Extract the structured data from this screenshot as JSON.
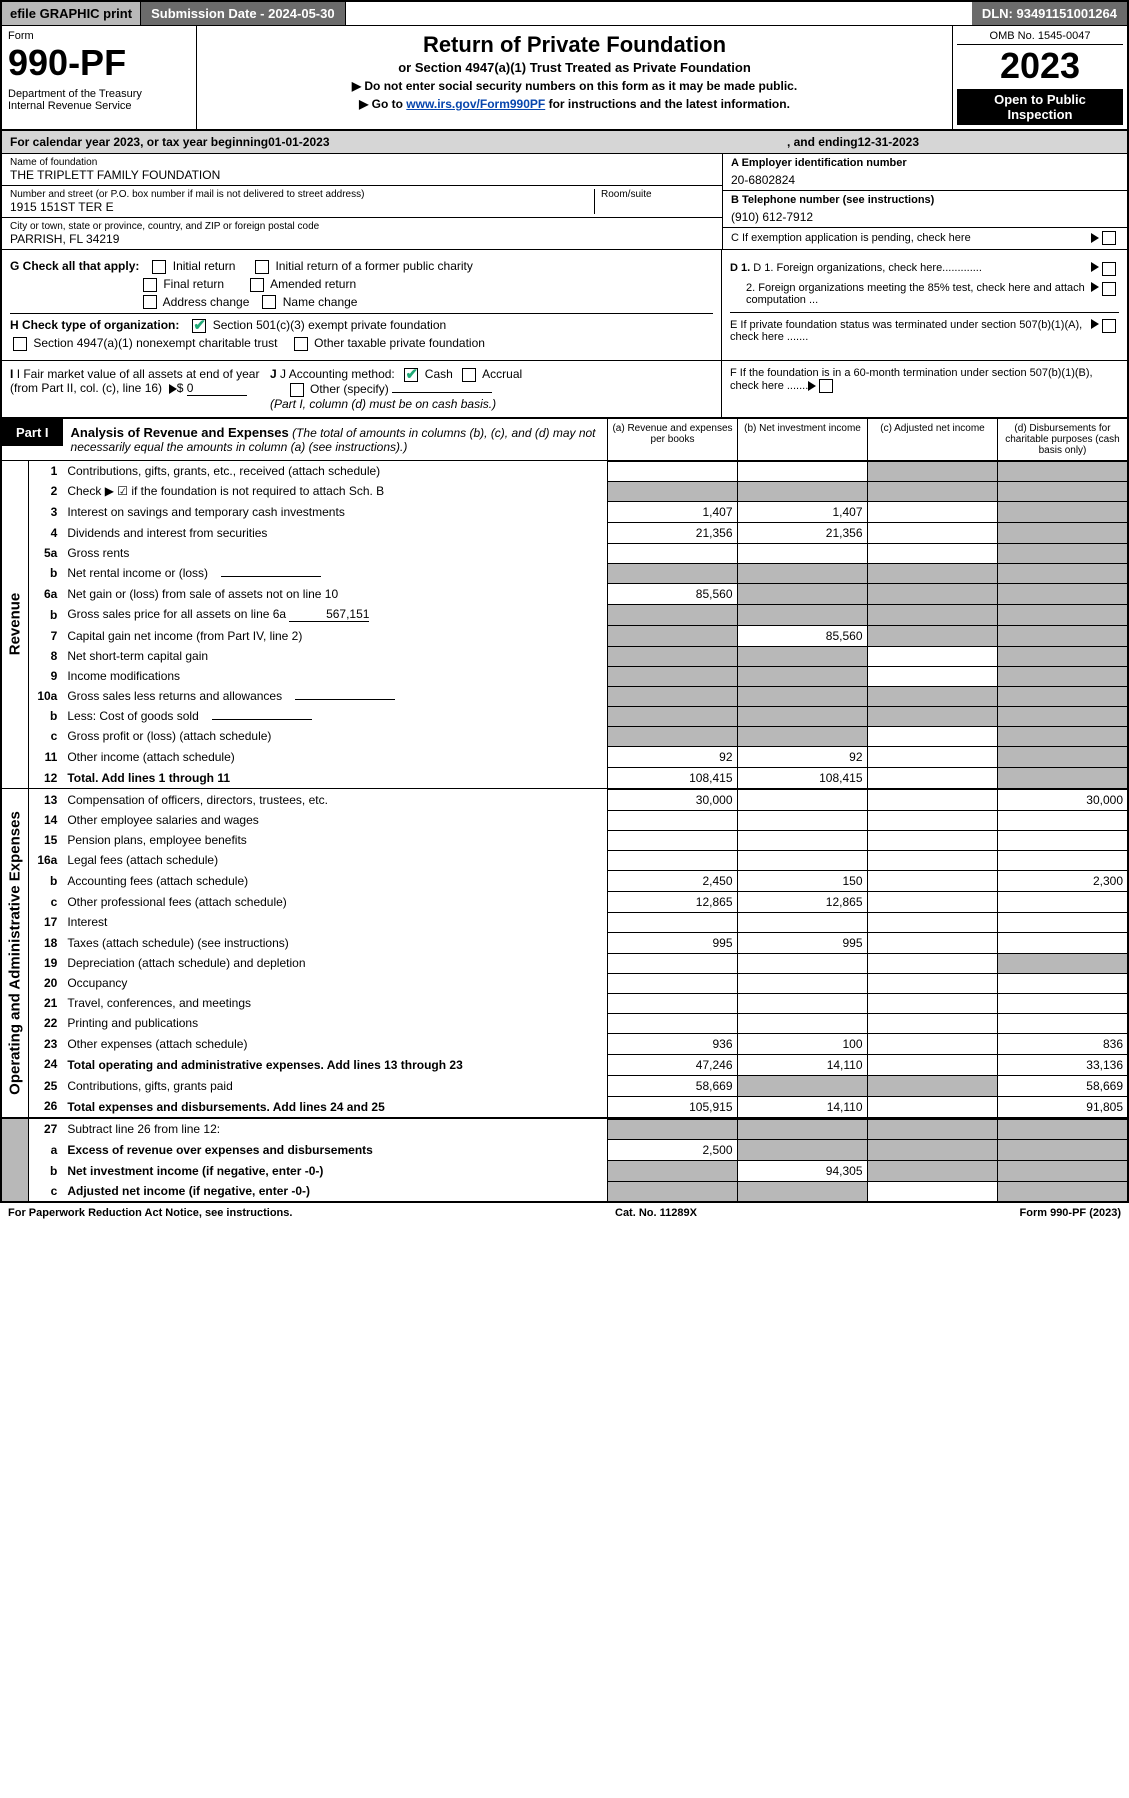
{
  "topbar": {
    "efile": "efile GRAPHIC print",
    "subdate": "Submission Date - 2024-05-30",
    "dln": "DLN: 93491151001264"
  },
  "header": {
    "form_label": "Form",
    "form_num": "990-PF",
    "dept": "Department of the Treasury\nInternal Revenue Service",
    "title": "Return of Private Foundation",
    "subtitle": "or Section 4947(a)(1) Trust Treated as Private Foundation",
    "note1": "▶ Do not enter social security numbers on this form as it may be made public.",
    "note2_pre": "▶ Go to ",
    "note2_link": "www.irs.gov/Form990PF",
    "note2_post": " for instructions and the latest information.",
    "omb": "OMB No. 1545-0047",
    "year": "2023",
    "open": "Open to Public Inspection"
  },
  "cal": {
    "pre": "For calendar year 2023, or tax year beginning ",
    "begin": "01-01-2023",
    "mid": ", and ending ",
    "end": "12-31-2023"
  },
  "info": {
    "name_lbl": "Name of foundation",
    "name": "THE TRIPLETT FAMILY FOUNDATION",
    "addr_lbl": "Number and street (or P.O. box number if mail is not delivered to street address)",
    "addr": "1915 151ST TER E",
    "room_lbl": "Room/suite",
    "city_lbl": "City or town, state or province, country, and ZIP or foreign postal code",
    "city": "PARRISH, FL  34219",
    "a_lbl": "A Employer identification number",
    "a_val": "20-6802824",
    "b_lbl": "B Telephone number (see instructions)",
    "b_val": "(910) 612-7912",
    "c_lbl": "C If exemption application is pending, check here",
    "d1": "D 1. Foreign organizations, check here.............",
    "d2": "2. Foreign organizations meeting the 85% test, check here and attach computation ...",
    "e": "E  If private foundation status was terminated under section 507(b)(1)(A), check here .......",
    "f": "F  If the foundation is in a 60-month termination under section 507(b)(1)(B), check here .......",
    "g_lbl": "G Check all that apply:",
    "g_opts": [
      "Initial return",
      "Final return",
      "Address change",
      "Initial return of a former public charity",
      "Amended return",
      "Name change"
    ],
    "h_lbl": "H Check type of organization:",
    "h1": "Section 501(c)(3) exempt private foundation",
    "h2": "Section 4947(a)(1) nonexempt charitable trust",
    "h3": "Other taxable private foundation",
    "i_lbl": "I Fair market value of all assets at end of year (from Part II, col. (c), line 16)",
    "i_val": "0",
    "j_lbl": "J Accounting method:",
    "j_cash": "Cash",
    "j_accrual": "Accrual",
    "j_other": "Other (specify)",
    "j_note": "(Part I, column (d) must be on cash basis.)"
  },
  "part1": {
    "badge": "Part I",
    "title": "Analysis of Revenue and Expenses",
    "title_note": "(The total of amounts in columns (b), (c), and (d) may not necessarily equal the amounts in column (a) (see instructions).)",
    "col_a": "(a)  Revenue and expenses per books",
    "col_b": "(b)  Net investment income",
    "col_c": "(c)  Adjusted net income",
    "col_d": "(d)  Disbursements for charitable purposes (cash basis only)"
  },
  "sides": {
    "revenue": "Revenue",
    "expenses": "Operating and Administrative Expenses"
  },
  "rows": [
    {
      "n": "1",
      "d": "Contributions, gifts, grants, etc., received (attach schedule)",
      "a": "",
      "b": "",
      "c": "",
      "dd": "",
      "as": false,
      "bs": false,
      "cs": true,
      "ds": true
    },
    {
      "n": "2",
      "d": "Check ▶ ☑ if the foundation is not required to attach Sch. B",
      "a": "",
      "b": "",
      "c": "",
      "dd": "",
      "as": true,
      "bs": true,
      "cs": true,
      "ds": true,
      "bold_not": true
    },
    {
      "n": "3",
      "d": "Interest on savings and temporary cash investments",
      "a": "1,407",
      "b": "1,407",
      "c": "",
      "dd": "",
      "cs": false,
      "ds": true
    },
    {
      "n": "4",
      "d": "Dividends and interest from securities",
      "a": "21,356",
      "b": "21,356",
      "c": "",
      "dd": "",
      "ds": true
    },
    {
      "n": "5a",
      "d": "Gross rents",
      "a": "",
      "b": "",
      "c": "",
      "dd": "",
      "ds": true
    },
    {
      "n": "b",
      "d": "Net rental income or (loss)",
      "a": "",
      "b": "",
      "c": "",
      "dd": "",
      "as": true,
      "bs": true,
      "cs": true,
      "ds": true,
      "inline_blank": true
    },
    {
      "n": "6a",
      "d": "Net gain or (loss) from sale of assets not on line 10",
      "a": "85,560",
      "b": "",
      "c": "",
      "dd": "",
      "bs": true,
      "cs": true,
      "ds": true
    },
    {
      "n": "b",
      "d": "Gross sales price for all assets on line 6a",
      "a": "",
      "b": "",
      "c": "",
      "dd": "",
      "as": true,
      "bs": true,
      "cs": true,
      "ds": true,
      "inline_val": "567,151"
    },
    {
      "n": "7",
      "d": "Capital gain net income (from Part IV, line 2)",
      "a": "",
      "b": "85,560",
      "c": "",
      "dd": "",
      "as": true,
      "cs": true,
      "ds": true
    },
    {
      "n": "8",
      "d": "Net short-term capital gain",
      "a": "",
      "b": "",
      "c": "",
      "dd": "",
      "as": true,
      "bs": true,
      "ds": true
    },
    {
      "n": "9",
      "d": "Income modifications",
      "a": "",
      "b": "",
      "c": "",
      "dd": "",
      "as": true,
      "bs": true,
      "ds": true
    },
    {
      "n": "10a",
      "d": "Gross sales less returns and allowances",
      "a": "",
      "b": "",
      "c": "",
      "dd": "",
      "as": true,
      "bs": true,
      "cs": true,
      "ds": true,
      "inline_blank": true
    },
    {
      "n": "b",
      "d": "Less: Cost of goods sold",
      "a": "",
      "b": "",
      "c": "",
      "dd": "",
      "as": true,
      "bs": true,
      "cs": true,
      "ds": true,
      "inline_blank": true
    },
    {
      "n": "c",
      "d": "Gross profit or (loss) (attach schedule)",
      "a": "",
      "b": "",
      "c": "",
      "dd": "",
      "as": true,
      "bs": true,
      "ds": true
    },
    {
      "n": "11",
      "d": "Other income (attach schedule)",
      "a": "92",
      "b": "92",
      "c": "",
      "dd": "",
      "ds": true
    },
    {
      "n": "12",
      "d": "Total. Add lines 1 through 11",
      "a": "108,415",
      "b": "108,415",
      "c": "",
      "dd": "",
      "ds": true,
      "bold": true
    }
  ],
  "exp_rows": [
    {
      "n": "13",
      "d": "Compensation of officers, directors, trustees, etc.",
      "a": "30,000",
      "b": "",
      "c": "",
      "dd": "30,000"
    },
    {
      "n": "14",
      "d": "Other employee salaries and wages",
      "a": "",
      "b": "",
      "c": "",
      "dd": ""
    },
    {
      "n": "15",
      "d": "Pension plans, employee benefits",
      "a": "",
      "b": "",
      "c": "",
      "dd": ""
    },
    {
      "n": "16a",
      "d": "Legal fees (attach schedule)",
      "a": "",
      "b": "",
      "c": "",
      "dd": ""
    },
    {
      "n": "b",
      "d": "Accounting fees (attach schedule)",
      "a": "2,450",
      "b": "150",
      "c": "",
      "dd": "2,300"
    },
    {
      "n": "c",
      "d": "Other professional fees (attach schedule)",
      "a": "12,865",
      "b": "12,865",
      "c": "",
      "dd": ""
    },
    {
      "n": "17",
      "d": "Interest",
      "a": "",
      "b": "",
      "c": "",
      "dd": ""
    },
    {
      "n": "18",
      "d": "Taxes (attach schedule) (see instructions)",
      "a": "995",
      "b": "995",
      "c": "",
      "dd": ""
    },
    {
      "n": "19",
      "d": "Depreciation (attach schedule) and depletion",
      "a": "",
      "b": "",
      "c": "",
      "dd": "",
      "ds": true
    },
    {
      "n": "20",
      "d": "Occupancy",
      "a": "",
      "b": "",
      "c": "",
      "dd": ""
    },
    {
      "n": "21",
      "d": "Travel, conferences, and meetings",
      "a": "",
      "b": "",
      "c": "",
      "dd": ""
    },
    {
      "n": "22",
      "d": "Printing and publications",
      "a": "",
      "b": "",
      "c": "",
      "dd": ""
    },
    {
      "n": "23",
      "d": "Other expenses (attach schedule)",
      "a": "936",
      "b": "100",
      "c": "",
      "dd": "836"
    },
    {
      "n": "24",
      "d": "Total operating and administrative expenses. Add lines 13 through 23",
      "a": "47,246",
      "b": "14,110",
      "c": "",
      "dd": "33,136",
      "bold": true,
      "tall": true
    },
    {
      "n": "25",
      "d": "Contributions, gifts, grants paid",
      "a": "58,669",
      "b": "",
      "c": "",
      "dd": "58,669",
      "bs": true,
      "cs": true
    },
    {
      "n": "26",
      "d": "Total expenses and disbursements. Add lines 24 and 25",
      "a": "105,915",
      "b": "14,110",
      "c": "",
      "dd": "91,805",
      "bold": true,
      "tall": true
    }
  ],
  "final_rows": [
    {
      "n": "27",
      "d": "Subtract line 26 from line 12:",
      "a": "",
      "b": "",
      "c": "",
      "dd": "",
      "as": true,
      "bs": true,
      "cs": true,
      "ds": true
    },
    {
      "n": "a",
      "d": "Excess of revenue over expenses and disbursements",
      "a": "2,500",
      "b": "",
      "c": "",
      "dd": "",
      "bold": true,
      "bs": true,
      "cs": true,
      "ds": true
    },
    {
      "n": "b",
      "d": "Net investment income (if negative, enter -0-)",
      "a": "",
      "b": "94,305",
      "c": "",
      "dd": "",
      "bold": true,
      "as": true,
      "cs": true,
      "ds": true
    },
    {
      "n": "c",
      "d": "Adjusted net income (if negative, enter -0-)",
      "a": "",
      "b": "",
      "c": "",
      "dd": "",
      "bold": true,
      "as": true,
      "bs": true,
      "ds": true
    }
  ],
  "footer": {
    "left": "For Paperwork Reduction Act Notice, see instructions.",
    "mid": "Cat. No. 11289X",
    "right": "Form 990-PF (2023)"
  }
}
